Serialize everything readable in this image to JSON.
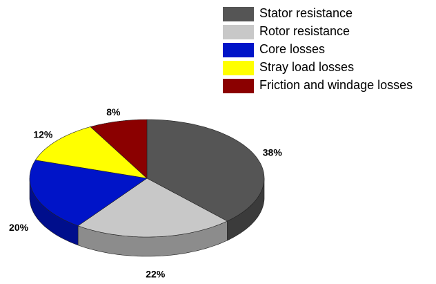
{
  "chart_data": {
    "type": "pie",
    "categories": [
      "Stator resistance",
      "Rotor resistance",
      "Core losses",
      "Stray load losses",
      "Friction and windage losses"
    ],
    "values": [
      38,
      22,
      20,
      12,
      8
    ],
    "value_labels": [
      "38%",
      "22%",
      "20%",
      "12%",
      "8%"
    ],
    "colors": [
      "#555555",
      "#c8c8c8",
      "#0014c8",
      "#ffff00",
      "#8b0000"
    ],
    "legend": "top-right"
  }
}
